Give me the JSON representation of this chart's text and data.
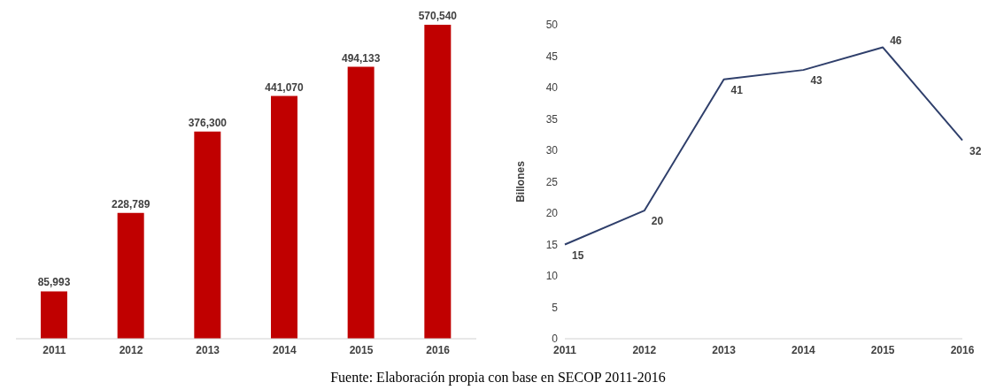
{
  "chart_data": [
    {
      "type": "bar",
      "categories": [
        "2011",
        "2012",
        "2013",
        "2014",
        "2015",
        "2016"
      ],
      "values": [
        85993,
        228789,
        376300,
        441070,
        494133,
        570540
      ],
      "value_labels": [
        "85,993",
        "228,789",
        "376,300",
        "441,070",
        "494,133",
        "570,540"
      ],
      "color": "#c00000",
      "grid": false,
      "legend": false
    },
    {
      "type": "line",
      "categories": [
        "2011",
        "2012",
        "2013",
        "2014",
        "2015",
        "2016"
      ],
      "values": [
        15,
        20.4,
        41.3,
        42.8,
        46.4,
        31.6
      ],
      "value_labels": [
        "15",
        "20",
        "41",
        "43",
        "46",
        "32"
      ],
      "color": "#2f3f6b",
      "ylabel": "Billones",
      "ylim": [
        0,
        50
      ],
      "yticks": [
        0,
        5,
        10,
        15,
        20,
        25,
        30,
        35,
        40,
        45,
        50
      ],
      "grid": false,
      "legend": false,
      "marker": "none",
      "line_style": "solid",
      "annotations": [
        "Fuente: Elaboración propia con base en SECOP 2011-2016"
      ]
    }
  ]
}
